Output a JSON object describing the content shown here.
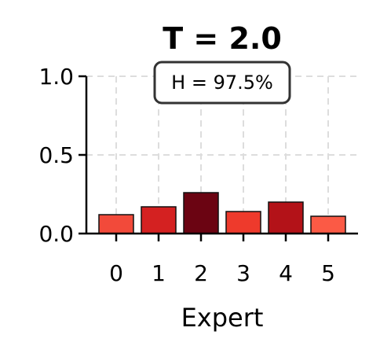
{
  "chart_data": {
    "type": "bar",
    "title": "T = 2.0",
    "xlabel": "Expert",
    "ylabel": "",
    "categories": [
      "0",
      "1",
      "2",
      "3",
      "4",
      "5"
    ],
    "values": [
      0.12,
      0.17,
      0.26,
      0.14,
      0.2,
      0.11
    ],
    "bar_colors": [
      "#f24a3a",
      "#d42121",
      "#6b0412",
      "#ee3a2c",
      "#b31218",
      "#fb5a45"
    ],
    "ylim": [
      0,
      1.0
    ],
    "yticks": [
      "0.0",
      "0.5",
      "1.0"
    ],
    "ytick_values": [
      0,
      0.5,
      1.0
    ],
    "grid": true,
    "annotation": "H = 97.5%"
  }
}
